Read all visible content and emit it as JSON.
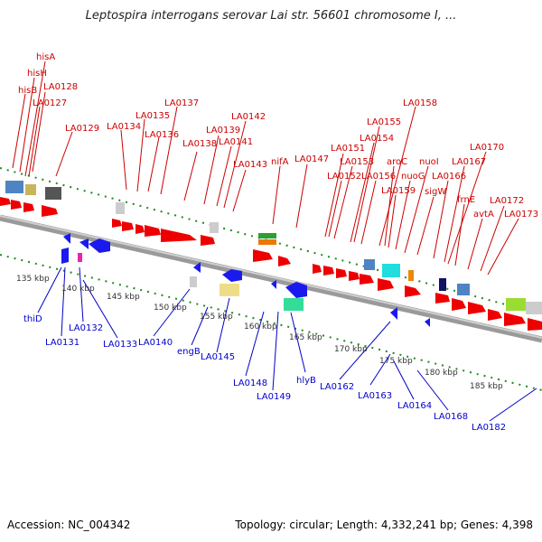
{
  "title": "Leptospira interrogans serovar Lai str. 56601 chromosome I, ...",
  "accession": "Accession: NC_004342",
  "summary": "Topology: circular; Length: 4,332,241 bp; Genes: 4,398",
  "colors": {
    "forward_gene": "#ee0000",
    "reverse_gene": "#1a1aee",
    "forward_label": "#cc0000",
    "reverse_label": "#0000cc",
    "backbone": "#8a8a8a",
    "tick": "#228822"
  },
  "top_labels": [
    "hisA",
    "hisH",
    "hisB",
    "LA0128",
    "LA0127",
    "LA0129",
    "LA0134",
    "LA0135",
    "LA0136",
    "LA0137",
    "LA0138",
    "LA0139",
    "LA0141",
    "LA0142",
    "LA0143",
    "nifA",
    "LA0147",
    "LA0151",
    "LA0152",
    "LA0153",
    "LA0154",
    "LA0155",
    "LA0156",
    "LA0158",
    "aroC",
    "LA0159",
    "nuoG",
    "nuoI",
    "sigW",
    "LA0166",
    "LA0167",
    "LA0170",
    "frnE",
    "avtA",
    "LA0172",
    "LA0173"
  ],
  "bottom_labels": [
    "thiD",
    "LA0131",
    "LA0132",
    "LA0133",
    "LA0140",
    "engB",
    "LA0145",
    "LA0148",
    "LA0149",
    "hlyB",
    "LA0162",
    "LA0163",
    "LA0164",
    "LA0168",
    "LA0182"
  ],
  "kbp_labels": [
    "135 kbp",
    "140 kbp",
    "145 kbp",
    "150 kbp",
    "155 kbp",
    "160 kbp",
    "165 kbp",
    "170 kbp",
    "175 kbp",
    "180 kbp",
    "185 kbp"
  ]
}
